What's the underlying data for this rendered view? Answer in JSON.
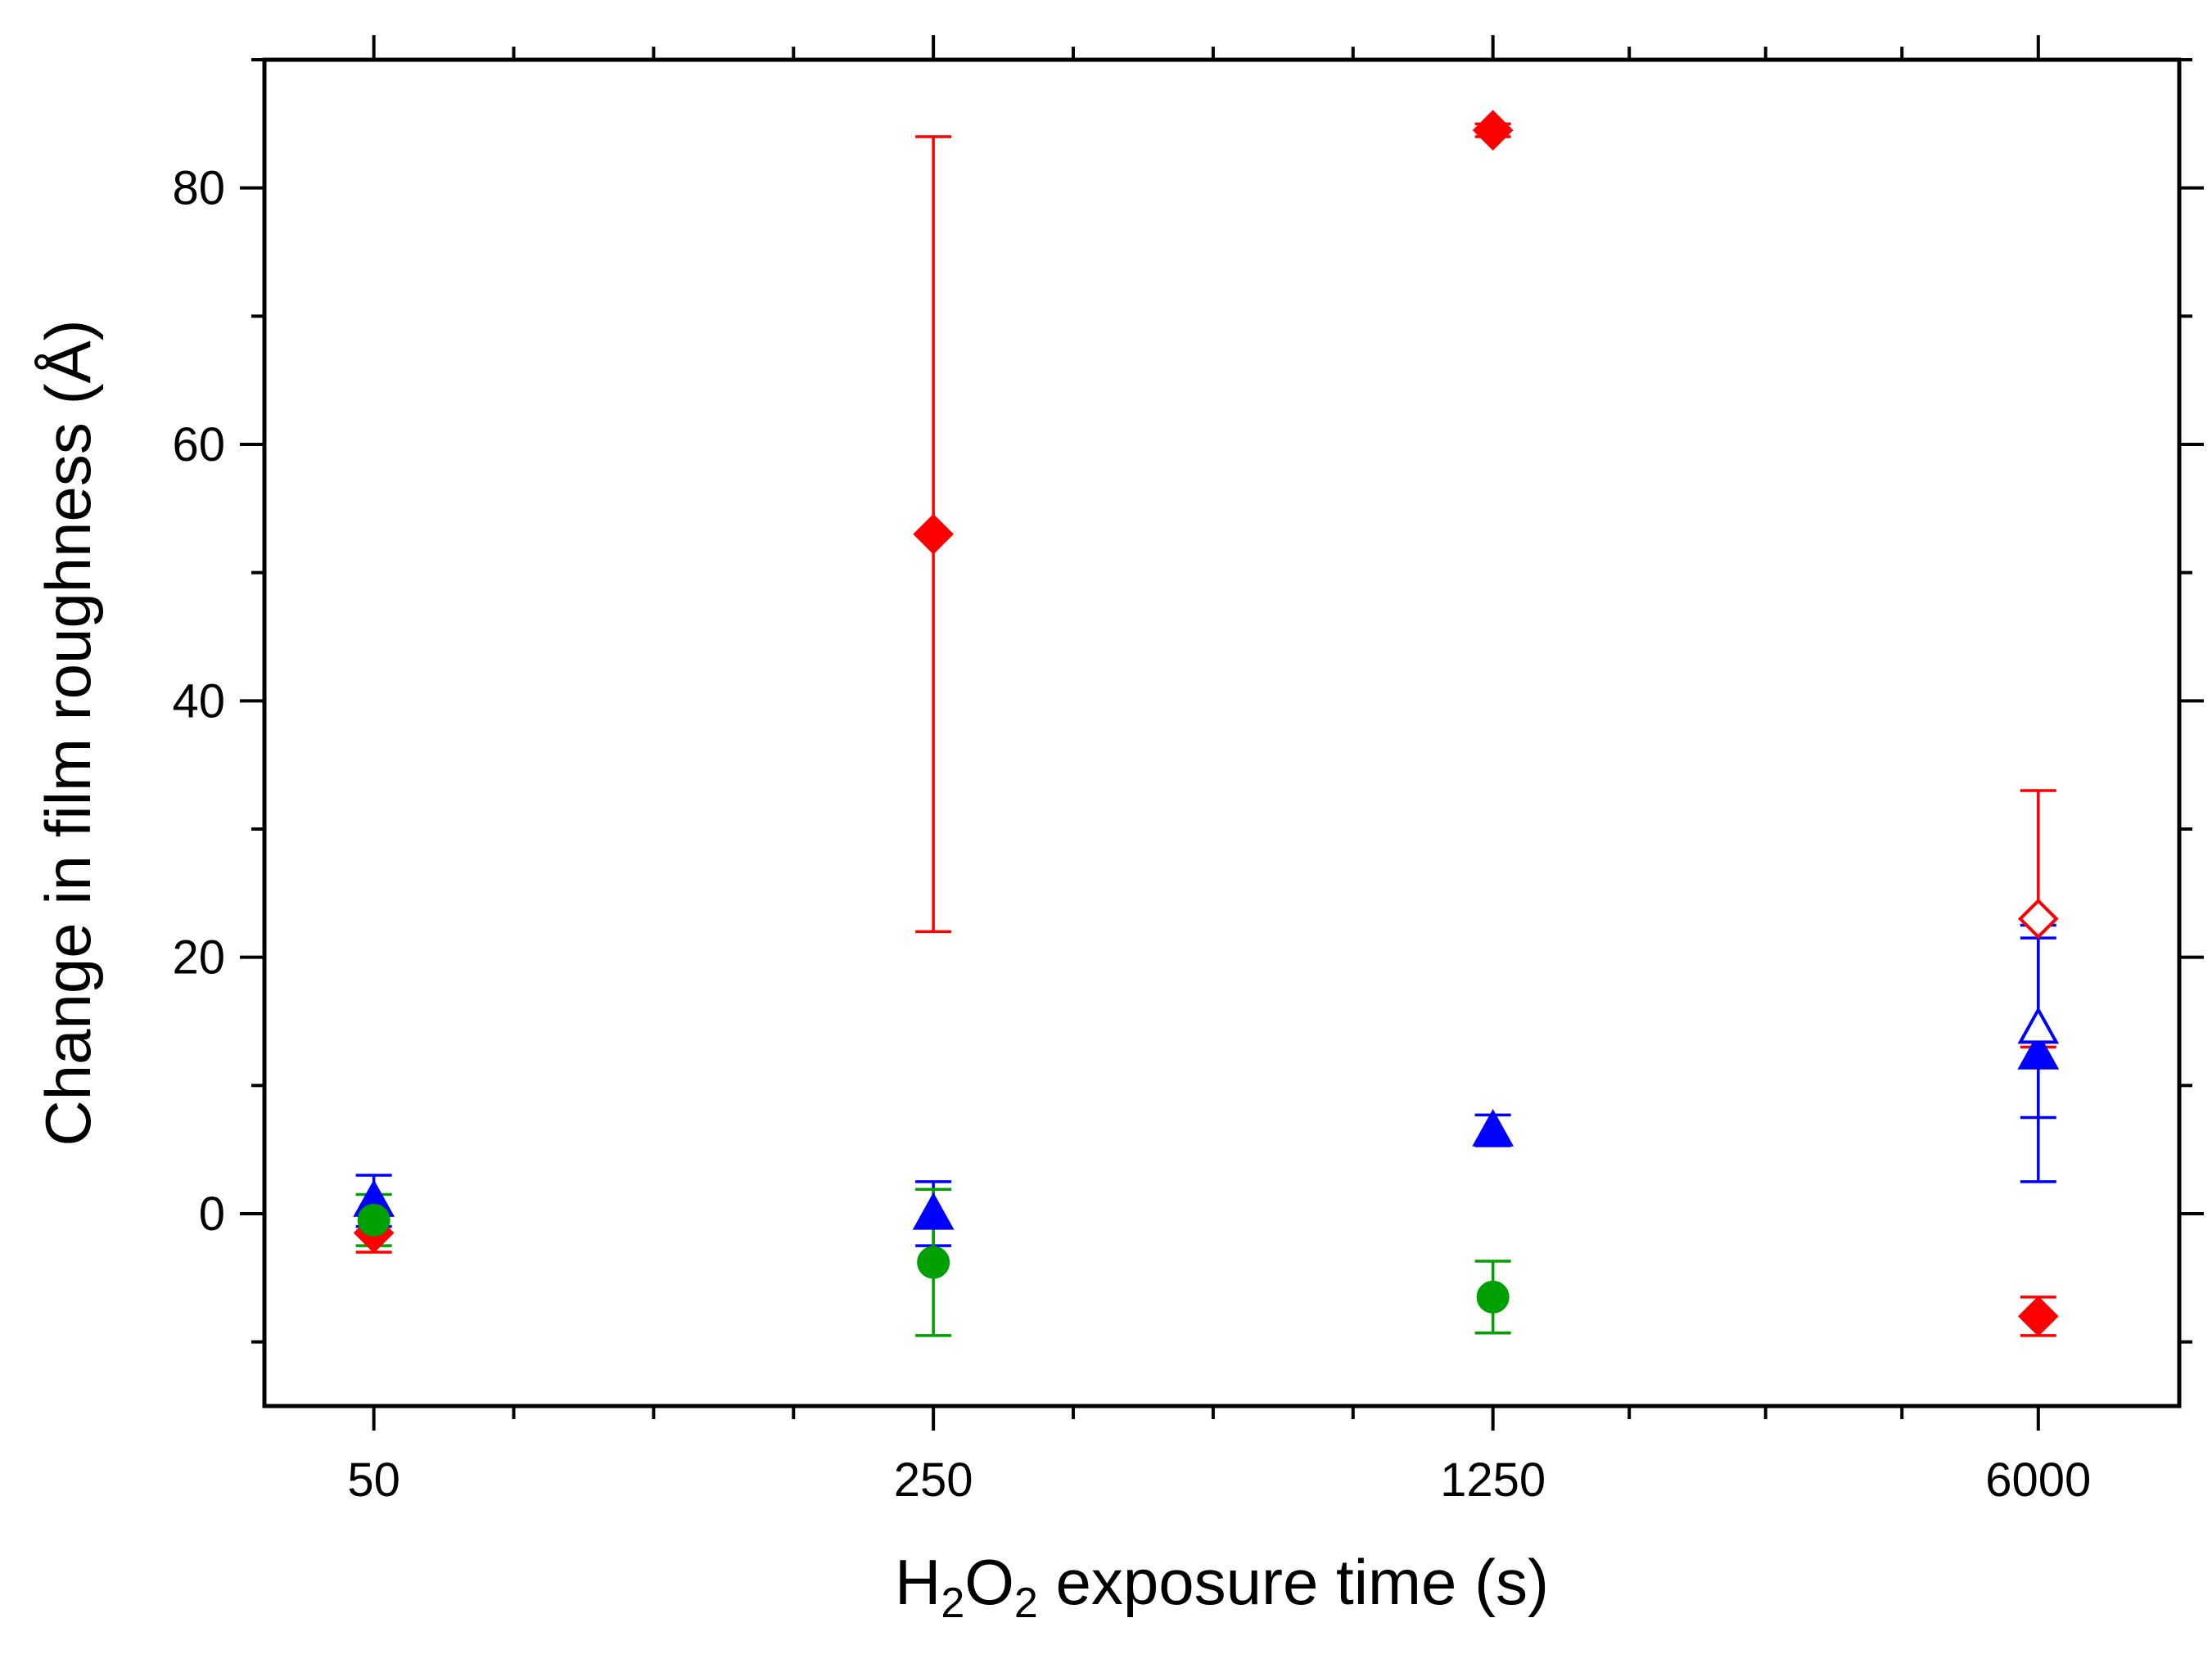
{
  "chart_data": {
    "type": "scatter",
    "xlabel_parts": [
      "H",
      "2",
      "O",
      "2",
      " exposure time (s)"
    ],
    "ylabel": "Change in film roughness (Å)",
    "x_scale": "log",
    "x_ticks": [
      50,
      250,
      1250,
      6000
    ],
    "x_tick_labels": [
      "50",
      "250",
      "1250",
      "6000"
    ],
    "y_ticks": [
      0,
      20,
      40,
      60,
      80
    ],
    "y_tick_labels": [
      "0",
      "20",
      "40",
      "60",
      "80"
    ],
    "xlim": [
      36.5,
      9000
    ],
    "ylim": [
      -15,
      90
    ],
    "grid": false,
    "legend": "none",
    "series": [
      {
        "marker": "diamond",
        "filled": true,
        "color": "#ff0000",
        "points": [
          {
            "x": 50,
            "y": -1.5,
            "err": 1.5
          },
          {
            "x": 250,
            "y": 53,
            "err": 31
          },
          {
            "x": 1250,
            "y": 84.5,
            "err": 0.5
          },
          {
            "x": 6000,
            "y": -8,
            "err": 1.5
          }
        ]
      },
      {
        "marker": "diamond",
        "filled": false,
        "color": "#ff0000",
        "points": [
          {
            "x": 6000,
            "y": 23,
            "err": 10
          }
        ]
      },
      {
        "marker": "triangle",
        "filled": true,
        "color": "#0000ff",
        "points": [
          {
            "x": 50,
            "y": 1,
            "err": 2
          },
          {
            "x": 250,
            "y": 0,
            "err": 2.5
          },
          {
            "x": 1250,
            "y": 6.5,
            "err": 1.2
          },
          {
            "x": 6000,
            "y": 12.5,
            "err": 10
          }
        ]
      },
      {
        "marker": "triangle",
        "filled": false,
        "color": "#0000ff",
        "points": [
          {
            "x": 6000,
            "y": 14.5,
            "err": 7
          }
        ]
      },
      {
        "marker": "circle",
        "filled": true,
        "color": "#00a000",
        "points": [
          {
            "x": 50,
            "y": -0.5,
            "err": 2
          },
          {
            "x": 250,
            "y": -3.8,
            "err": 5.7
          },
          {
            "x": 1250,
            "y": -6.5,
            "err": 2.8
          }
        ]
      }
    ]
  }
}
